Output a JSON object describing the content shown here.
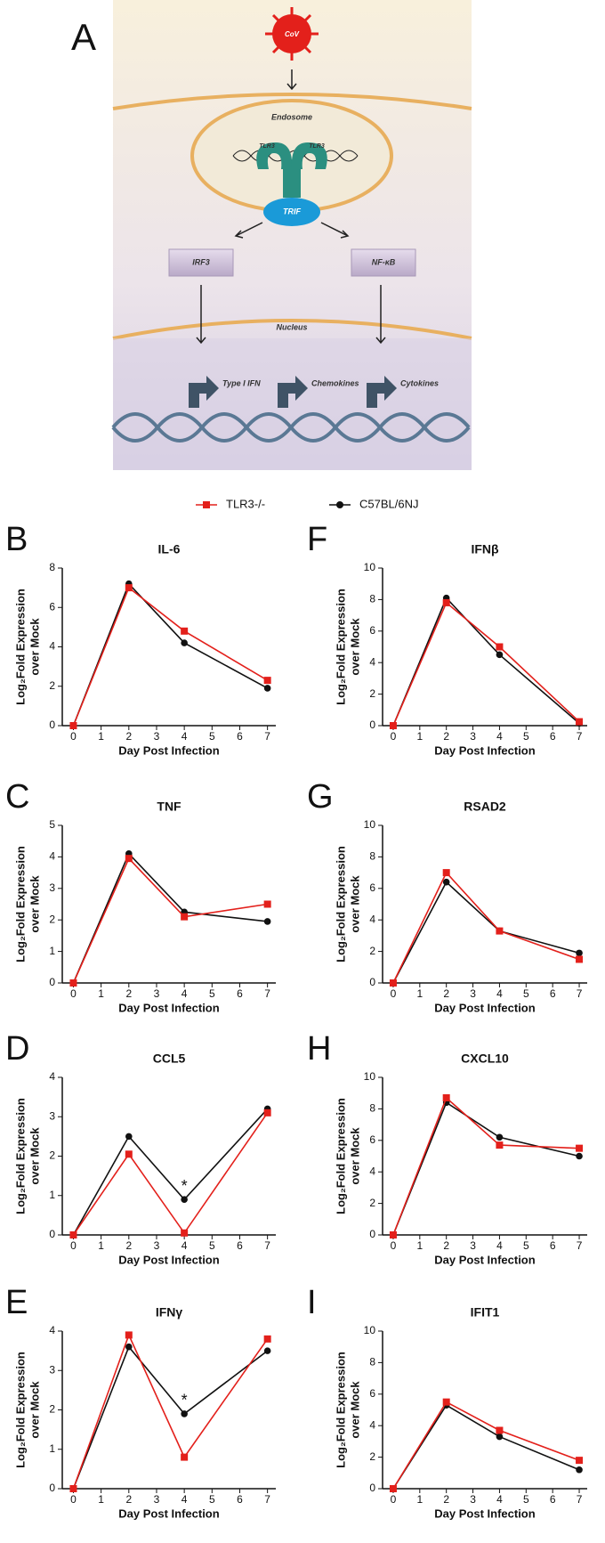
{
  "diagram": {
    "panel": "A",
    "virus": "CoV",
    "endosome": "Endosome",
    "receptor_left": "TLR3",
    "receptor_right": "TLR3",
    "adaptor": "TRIF",
    "factor_left": "IRF3",
    "factor_right": "NF-κB",
    "nucleus": "Nucleus",
    "genes": [
      "Type I IFN",
      "Chemokines",
      "Cytokines"
    ]
  },
  "chart_data": [
    {
      "type": "line",
      "panel": "B",
      "title": "IL-6",
      "xlabel": "Day Post Infection",
      "ylabel": [
        "Log₂Fold Expression",
        "over Mock"
      ],
      "x": [
        0,
        2,
        4,
        7
      ],
      "xlim": [
        -0.4,
        7.3
      ],
      "xticks": [
        0,
        1,
        2,
        3,
        4,
        5,
        6,
        7
      ],
      "ylim": [
        0,
        8
      ],
      "yticks": [
        0,
        2,
        4,
        6,
        8
      ],
      "series": [
        {
          "name": "TLR3-/-",
          "color": "#e3201b",
          "values": [
            0,
            7.0,
            4.8,
            2.3
          ]
        },
        {
          "name": "C57BL/6NJ",
          "color": "#111111",
          "values": [
            0,
            7.2,
            4.2,
            1.9
          ]
        }
      ]
    },
    {
      "type": "line",
      "panel": "F",
      "title": "IFNβ",
      "xlabel": "Day Post Infection",
      "ylabel": [
        "Log₂Fold Expression",
        "over Mock"
      ],
      "x": [
        0,
        2,
        4,
        7
      ],
      "xlim": [
        -0.4,
        7.3
      ],
      "xticks": [
        0,
        1,
        2,
        3,
        4,
        5,
        6,
        7
      ],
      "ylim": [
        0,
        10
      ],
      "yticks": [
        0,
        2,
        4,
        6,
        8,
        10
      ],
      "series": [
        {
          "name": "TLR3-/-",
          "color": "#e3201b",
          "values": [
            0,
            7.8,
            5.0,
            0.25
          ]
        },
        {
          "name": "C57BL/6NJ",
          "color": "#111111",
          "values": [
            0,
            8.1,
            4.5,
            0.15
          ]
        }
      ]
    },
    {
      "type": "line",
      "panel": "C",
      "title": "TNF",
      "xlabel": "Day Post Infection",
      "ylabel": [
        "Log₂Fold Expression",
        "over Mock"
      ],
      "x": [
        0,
        2,
        4,
        7
      ],
      "xlim": [
        -0.4,
        7.3
      ],
      "xticks": [
        0,
        1,
        2,
        3,
        4,
        5,
        6,
        7
      ],
      "ylim": [
        0,
        5
      ],
      "yticks": [
        0,
        1,
        2,
        3,
        4,
        5
      ],
      "series": [
        {
          "name": "TLR3-/-",
          "color": "#e3201b",
          "values": [
            0,
            3.95,
            2.1,
            2.5
          ]
        },
        {
          "name": "C57BL/6NJ",
          "color": "#111111",
          "values": [
            0,
            4.1,
            2.25,
            1.95
          ]
        }
      ]
    },
    {
      "type": "line",
      "panel": "G",
      "title": "RSAD2",
      "xlabel": "Day Post Infection",
      "ylabel": [
        "Log₂Fold Expression",
        "over Mock"
      ],
      "x": [
        0,
        2,
        4,
        7
      ],
      "xlim": [
        -0.4,
        7.3
      ],
      "xticks": [
        0,
        1,
        2,
        3,
        4,
        5,
        6,
        7
      ],
      "ylim": [
        0,
        10
      ],
      "yticks": [
        0,
        2,
        4,
        6,
        8,
        10
      ],
      "series": [
        {
          "name": "TLR3-/-",
          "color": "#e3201b",
          "values": [
            0,
            7.0,
            3.3,
            1.5
          ]
        },
        {
          "name": "C57BL/6NJ",
          "color": "#111111",
          "values": [
            0,
            6.4,
            3.3,
            1.9
          ]
        }
      ]
    },
    {
      "type": "line",
      "panel": "D",
      "title": "CCL5",
      "annotation": "*",
      "xlabel": "Day Post Infection",
      "ylabel": [
        "Log₂Fold Expression",
        "over Mock"
      ],
      "x": [
        0,
        2,
        4,
        7
      ],
      "xlim": [
        -0.4,
        7.3
      ],
      "xticks": [
        0,
        1,
        2,
        3,
        4,
        5,
        6,
        7
      ],
      "ylim": [
        0,
        4
      ],
      "yticks": [
        0,
        1,
        2,
        3,
        4
      ],
      "series": [
        {
          "name": "TLR3-/-",
          "color": "#e3201b",
          "values": [
            0,
            2.05,
            0.05,
            3.1
          ]
        },
        {
          "name": "C57BL/6NJ",
          "color": "#111111",
          "values": [
            0,
            2.5,
            0.9,
            3.2
          ]
        }
      ]
    },
    {
      "type": "line",
      "panel": "H",
      "title": "CXCL10",
      "xlabel": "Day Post Infection",
      "ylabel": [
        "Log₂Fold Expression",
        "over Mock"
      ],
      "x": [
        0,
        2,
        4,
        7
      ],
      "xlim": [
        -0.4,
        7.3
      ],
      "xticks": [
        0,
        1,
        2,
        3,
        4,
        5,
        6,
        7
      ],
      "ylim": [
        0,
        10
      ],
      "yticks": [
        0,
        2,
        4,
        6,
        8,
        10
      ],
      "series": [
        {
          "name": "TLR3-/-",
          "color": "#e3201b",
          "values": [
            0,
            8.7,
            5.7,
            5.5
          ]
        },
        {
          "name": "C57BL/6NJ",
          "color": "#111111",
          "values": [
            0,
            8.4,
            6.2,
            5.0
          ]
        }
      ]
    },
    {
      "type": "line",
      "panel": "E",
      "title": "IFNγ",
      "annotation": "*",
      "xlabel": "Day Post Infection",
      "ylabel": [
        "Log₂Fold Expression",
        "over Mock"
      ],
      "x": [
        0,
        2,
        4,
        7
      ],
      "xlim": [
        -0.4,
        7.3
      ],
      "xticks": [
        0,
        1,
        2,
        3,
        4,
        5,
        6,
        7
      ],
      "ylim": [
        0,
        4
      ],
      "yticks": [
        0,
        1,
        2,
        3,
        4
      ],
      "series": [
        {
          "name": "TLR3-/-",
          "color": "#e3201b",
          "values": [
            0,
            3.9,
            0.8,
            3.8
          ]
        },
        {
          "name": "C57BL/6NJ",
          "color": "#111111",
          "values": [
            0,
            3.6,
            1.9,
            3.5
          ]
        }
      ]
    },
    {
      "type": "line",
      "panel": "I",
      "title": "IFIT1",
      "xlabel": "Day Post Infection",
      "ylabel": [
        "Log₂Fold Expression",
        "over Mock"
      ],
      "x": [
        0,
        2,
        4,
        7
      ],
      "xlim": [
        -0.4,
        7.3
      ],
      "xticks": [
        0,
        1,
        2,
        3,
        4,
        5,
        6,
        7
      ],
      "ylim": [
        0,
        10
      ],
      "yticks": [
        0,
        2,
        4,
        6,
        8,
        10
      ],
      "series": [
        {
          "name": "TLR3-/-",
          "color": "#e3201b",
          "values": [
            0,
            5.5,
            3.7,
            1.8
          ]
        },
        {
          "name": "C57BL/6NJ",
          "color": "#111111",
          "values": [
            0,
            5.3,
            3.3,
            1.2
          ]
        }
      ]
    }
  ]
}
